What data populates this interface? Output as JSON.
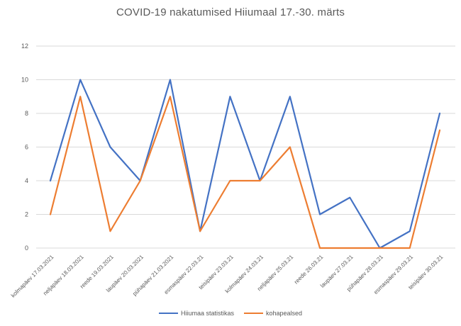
{
  "title": "COVID-19 nakatumised Hiiumaal 17.-30. märts",
  "colors": {
    "series_blue": "#4472C4",
    "series_orange": "#ED7D31",
    "gridline": "#D9D9D9",
    "axis_text": "#595959",
    "title_text": "#595959",
    "background": "#FFFFFF"
  },
  "chart_data": {
    "type": "line",
    "title": "COVID-19 nakatumised Hiiumaal 17.-30. märts",
    "xlabel": "",
    "ylabel": "",
    "ylim": [
      0,
      12
    ],
    "ytick_step": 2,
    "yticks": [
      0,
      2,
      4,
      6,
      8,
      10,
      12
    ],
    "grid": true,
    "legend_position": "bottom",
    "categories": [
      "kolmapäev 17.03.2021",
      "neljapäev 18.03.2021",
      "reede 19.03.2021",
      "laupäev 20.03.2021",
      "pühapäev 21.03.2021",
      "esmaspäev 22.03.21",
      "teisipäev 23.03.21",
      "kolmapäev 24.03.21",
      "neljapäev 25.03.21",
      "reede 26.03.21",
      "laupäev 27.03.21",
      "pühapäev 28.03.21",
      "esmaspäev 29.03.21",
      "teisipäev 30.03.21"
    ],
    "series": [
      {
        "name": "Hiiumaa statistikas",
        "color": "#4472C4",
        "values": [
          4,
          10,
          6,
          4,
          10,
          1,
          9,
          4,
          9,
          2,
          3,
          0,
          1,
          8
        ]
      },
      {
        "name": "kohapealsed",
        "color": "#ED7D31",
        "values": [
          2,
          9,
          1,
          4,
          9,
          1,
          4,
          4,
          6,
          0,
          0,
          0,
          0,
          7
        ]
      }
    ]
  }
}
